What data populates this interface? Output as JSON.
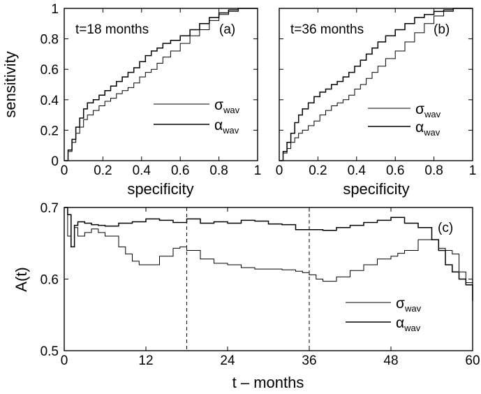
{
  "chart_data": [
    {
      "type": "line",
      "panel": "(a)",
      "annotation": "t=18 months",
      "xlabel": "specificity",
      "ylabel": "sensitivity",
      "xlim": [
        0,
        1
      ],
      "ylim": [
        0,
        1
      ],
      "xticks": [
        "0",
        "0.2",
        "0.4",
        "0.6",
        "0.8",
        "1"
      ],
      "yticks": [
        "0",
        "0.2",
        "0.4",
        "0.6",
        "0.8",
        "1"
      ],
      "legend_position": "center-right",
      "series": [
        {
          "name": "σ_wav",
          "x": [
            0,
            0.02,
            0.04,
            0.06,
            0.08,
            0.1,
            0.12,
            0.15,
            0.18,
            0.21,
            0.24,
            0.27,
            0.3,
            0.33,
            0.36,
            0.39,
            0.42,
            0.45,
            0.48,
            0.51,
            0.55,
            0.6,
            0.65,
            0.7,
            0.75,
            0.8,
            0.85,
            0.9,
            1.0
          ],
          "y": [
            0,
            0.06,
            0.12,
            0.18,
            0.22,
            0.27,
            0.3,
            0.33,
            0.36,
            0.39,
            0.41,
            0.44,
            0.46,
            0.48,
            0.51,
            0.55,
            0.58,
            0.6,
            0.64,
            0.68,
            0.72,
            0.77,
            0.82,
            0.86,
            0.92,
            0.96,
            0.98,
            1.0,
            1.0
          ]
        },
        {
          "name": "α_wav",
          "x": [
            0,
            0.02,
            0.04,
            0.06,
            0.08,
            0.1,
            0.12,
            0.15,
            0.18,
            0.21,
            0.24,
            0.27,
            0.3,
            0.33,
            0.36,
            0.39,
            0.42,
            0.45,
            0.48,
            0.51,
            0.55,
            0.6,
            0.65,
            0.7,
            0.75,
            0.8,
            0.85,
            0.9,
            1.0
          ],
          "y": [
            0,
            0.07,
            0.14,
            0.22,
            0.28,
            0.34,
            0.38,
            0.4,
            0.43,
            0.46,
            0.49,
            0.52,
            0.55,
            0.58,
            0.61,
            0.65,
            0.69,
            0.72,
            0.74,
            0.77,
            0.79,
            0.82,
            0.86,
            0.9,
            0.94,
            0.97,
            0.99,
            1.0,
            1.0
          ]
        }
      ]
    },
    {
      "type": "line",
      "panel": "(b)",
      "annotation": "t=36 months",
      "xlabel": "specificity",
      "xlim": [
        0,
        1
      ],
      "ylim": [
        0,
        1
      ],
      "xticks": [
        "0",
        "0.2",
        "0.4",
        "0.6",
        "0.8",
        "1"
      ],
      "legend_position": "center-right",
      "series": [
        {
          "name": "σ_wav",
          "x": [
            0,
            0.02,
            0.04,
            0.06,
            0.08,
            0.1,
            0.12,
            0.15,
            0.18,
            0.21,
            0.24,
            0.27,
            0.3,
            0.33,
            0.36,
            0.39,
            0.42,
            0.45,
            0.48,
            0.51,
            0.55,
            0.6,
            0.65,
            0.7,
            0.75,
            0.8,
            0.85,
            0.9,
            1.0
          ],
          "y": [
            0,
            0.05,
            0.08,
            0.12,
            0.15,
            0.18,
            0.2,
            0.23,
            0.26,
            0.3,
            0.33,
            0.36,
            0.38,
            0.4,
            0.43,
            0.47,
            0.5,
            0.54,
            0.58,
            0.62,
            0.67,
            0.72,
            0.78,
            0.84,
            0.9,
            0.95,
            0.98,
            1.0,
            1.0
          ]
        },
        {
          "name": "α_wav",
          "x": [
            0,
            0.02,
            0.04,
            0.06,
            0.08,
            0.1,
            0.12,
            0.15,
            0.18,
            0.21,
            0.24,
            0.27,
            0.3,
            0.33,
            0.36,
            0.39,
            0.42,
            0.45,
            0.48,
            0.51,
            0.55,
            0.6,
            0.65,
            0.7,
            0.75,
            0.8,
            0.85,
            0.9,
            1.0
          ],
          "y": [
            0,
            0.06,
            0.12,
            0.18,
            0.25,
            0.3,
            0.34,
            0.38,
            0.42,
            0.45,
            0.47,
            0.5,
            0.52,
            0.55,
            0.58,
            0.62,
            0.66,
            0.7,
            0.74,
            0.78,
            0.82,
            0.86,
            0.9,
            0.94,
            0.96,
            0.98,
            0.99,
            1.0,
            1.0
          ]
        }
      ]
    },
    {
      "type": "line",
      "panel": "(c)",
      "xlabel": "t – months",
      "ylabel": "A(t)",
      "xlim": [
        0,
        60
      ],
      "ylim": [
        0.5,
        0.7
      ],
      "xticks": [
        "0",
        "12",
        "24",
        "36",
        "48",
        "60"
      ],
      "yticks": [
        "0.5",
        "0.6",
        "0.7"
      ],
      "vlines": [
        18,
        36
      ],
      "legend_position": "lower-right",
      "series": [
        {
          "name": "σ_wav",
          "x": [
            0,
            0.5,
            1,
            1.5,
            2,
            3,
            4,
            5,
            6,
            8,
            9,
            10,
            11,
            12,
            14,
            16,
            17,
            18,
            19,
            20,
            22,
            24,
            26,
            28,
            30,
            32,
            34,
            35,
            36,
            37,
            38,
            40,
            42,
            44,
            46,
            48,
            49,
            50,
            52,
            54,
            55,
            56,
            57,
            58,
            59,
            60
          ],
          "y": [
            0.7,
            0.66,
            0.645,
            0.672,
            0.66,
            0.665,
            0.67,
            0.665,
            0.66,
            0.645,
            0.635,
            0.625,
            0.62,
            0.62,
            0.632,
            0.643,
            0.645,
            0.64,
            0.64,
            0.628,
            0.622,
            0.62,
            0.616,
            0.614,
            0.614,
            0.613,
            0.611,
            0.609,
            0.606,
            0.6,
            0.597,
            0.603,
            0.612,
            0.62,
            0.628,
            0.632,
            0.636,
            0.64,
            0.655,
            0.655,
            0.643,
            0.64,
            0.635,
            0.61,
            0.595,
            0.585
          ]
        },
        {
          "name": "α_wav",
          "x": [
            0,
            0.5,
            1,
            1.5,
            2,
            3,
            4,
            5,
            6,
            8,
            10,
            12,
            14,
            16,
            18,
            20,
            22,
            24,
            26,
            28,
            30,
            32,
            34,
            36,
            38,
            40,
            42,
            44,
            46,
            48,
            50,
            52,
            54,
            55,
            56,
            57,
            58,
            59,
            60
          ],
          "y": [
            0.7,
            0.69,
            0.645,
            0.675,
            0.68,
            0.678,
            0.676,
            0.675,
            0.674,
            0.678,
            0.68,
            0.684,
            0.682,
            0.679,
            0.684,
            0.678,
            0.68,
            0.678,
            0.682,
            0.681,
            0.677,
            0.676,
            0.669,
            0.669,
            0.668,
            0.672,
            0.675,
            0.679,
            0.682,
            0.686,
            0.678,
            0.672,
            0.655,
            0.64,
            0.62,
            0.61,
            0.6,
            0.592,
            0.57
          ]
        }
      ]
    }
  ]
}
